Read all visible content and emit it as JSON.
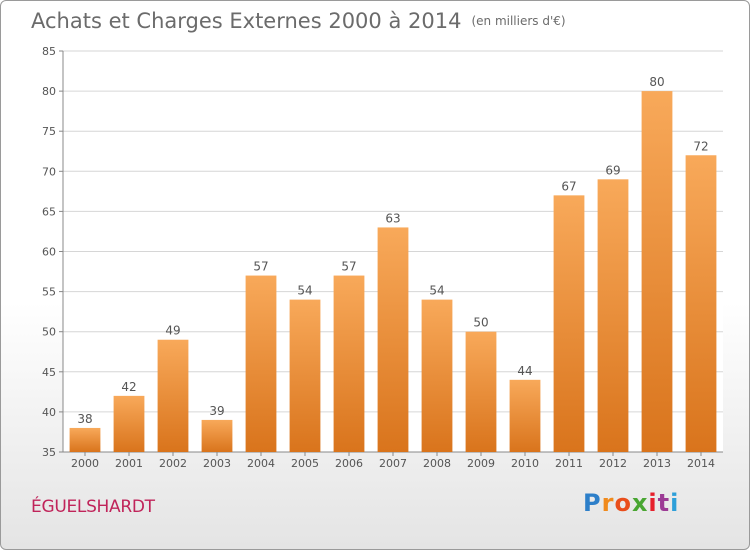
{
  "title": "Achats et Charges Externes 2000 à 2014",
  "unit": "(en milliers d'€)",
  "commune": "ÉGUELSHARDT",
  "logo": {
    "letters": [
      "P",
      "r",
      "o",
      "x",
      "i",
      "t",
      "i"
    ],
    "colors": [
      "#2d7fc9",
      "#f08a1c",
      "#e94e1b",
      "#49a632",
      "#e6202c",
      "#9c3b95",
      "#2d9fd9"
    ]
  },
  "colors": {
    "bar_top": "#f8a95a",
    "bar_bottom": "#d9741c",
    "commune_text": "#c0245a"
  },
  "chart_data": {
    "type": "bar",
    "categories": [
      "2000",
      "2001",
      "2002",
      "2003",
      "2004",
      "2005",
      "2006",
      "2007",
      "2008",
      "2009",
      "2010",
      "2011",
      "2012",
      "2013",
      "2014"
    ],
    "values": [
      38,
      42,
      49,
      39,
      57,
      54,
      57,
      63,
      54,
      50,
      44,
      67,
      69,
      80,
      72
    ],
    "ylim": [
      35,
      85
    ],
    "yticks": [
      35,
      40,
      45,
      50,
      55,
      60,
      65,
      70,
      75,
      80,
      85
    ],
    "grid": true,
    "data_labels": true
  }
}
